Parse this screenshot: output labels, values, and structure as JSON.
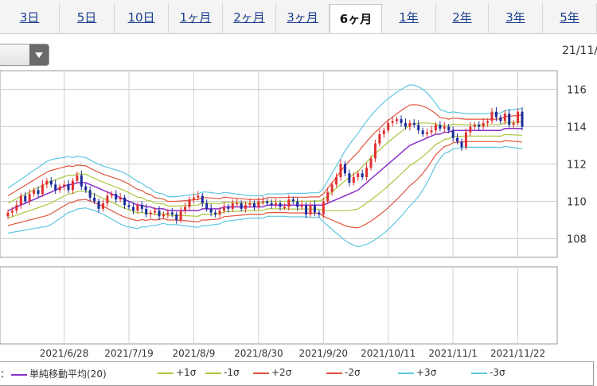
{
  "tabs": [
    {
      "label": "3日",
      "active": false
    },
    {
      "label": "5日",
      "active": false
    },
    {
      "label": "10日",
      "active": false
    },
    {
      "label": "1ヶ月",
      "active": false
    },
    {
      "label": "2ヶ月",
      "active": false
    },
    {
      "label": "3ヶ月",
      "active": false
    },
    {
      "label": "6ヶ月",
      "active": true
    },
    {
      "label": "1年",
      "active": false
    },
    {
      "label": "2年",
      "active": false
    },
    {
      "label": "3年",
      "active": false
    },
    {
      "label": "5年",
      "active": false
    }
  ],
  "header": {
    "date_label": "21/11/"
  },
  "legend": {
    "prefix": "：",
    "items": [
      {
        "label": "単純移動平均(20)",
        "color": "#8c2fc9"
      },
      {
        "label": "+1σ",
        "color": "#a8c83c"
      },
      {
        "label": "-1σ",
        "color": "#a8c83c"
      },
      {
        "label": "+2σ",
        "color": "#e0553a"
      },
      {
        "label": "-2σ",
        "color": "#e0553a"
      },
      {
        "label": "+3σ",
        "color": "#5fc8e0"
      },
      {
        "label": "-3σ",
        "color": "#5fc8e0"
      }
    ]
  },
  "colors": {
    "up": "#e03030",
    "down": "#1a2a9a",
    "grid": "#cfcfcf"
  },
  "chart_data": {
    "type": "candlestick",
    "title": "",
    "ylim": [
      107,
      117
    ],
    "yticks": [
      108,
      110,
      112,
      114,
      116
    ],
    "date_ticks": [
      "2021/6/28",
      "2021/7/19",
      "2021/8/9",
      "2021/8/30",
      "2021/9/20",
      "2021/10/11",
      "2021/11/1",
      "2021/11/22"
    ],
    "date_tick_index": [
      13,
      28,
      43,
      58,
      73,
      88,
      103,
      118
    ],
    "grid": true,
    "close": [
      109.4,
      109.5,
      109.8,
      110.3,
      110.0,
      110.4,
      110.6,
      110.4,
      110.9,
      111.1,
      110.9,
      110.6,
      110.8,
      110.9,
      110.6,
      111.1,
      111.4,
      110.8,
      110.6,
      110.2,
      110.0,
      109.6,
      109.9,
      110.3,
      110.4,
      110.1,
      110.2,
      109.8,
      109.7,
      109.5,
      109.8,
      109.6,
      109.3,
      109.4,
      109.5,
      109.2,
      109.3,
      109.4,
      109.3,
      109.0,
      109.5,
      109.7,
      110.1,
      110.2,
      110.3,
      109.9,
      109.6,
      109.4,
      109.3,
      109.5,
      109.7,
      109.6,
      109.9,
      109.9,
      109.6,
      109.8,
      109.9,
      109.7,
      110.0,
      110.0,
      109.9,
      109.8,
      109.9,
      109.7,
      109.7,
      110.1,
      110.0,
      109.7,
      109.8,
      109.3,
      109.8,
      109.4,
      109.3,
      110.0,
      110.5,
      110.9,
      111.3,
      112.0,
      111.5,
      111.0,
      111.3,
      111.5,
      111.3,
      111.8,
      112.3,
      113.1,
      113.6,
      113.8,
      114.2,
      114.3,
      114.4,
      114.2,
      114.0,
      114.2,
      114.1,
      113.8,
      113.6,
      113.7,
      113.8,
      114.1,
      113.9,
      114.0,
      113.8,
      113.4,
      113.2,
      112.9,
      113.7,
      114.0,
      114.1,
      114.0,
      114.2,
      114.3,
      114.8,
      114.5,
      114.3,
      114.7,
      114.1,
      114.2,
      114.8,
      114.0
    ],
    "sma20": [
      109.5,
      109.6,
      109.7,
      109.8,
      109.9,
      110.0,
      110.1,
      110.2,
      110.3,
      110.4,
      110.5,
      110.6,
      110.7,
      110.8,
      110.9,
      110.9,
      111.0,
      111.0,
      111.0,
      110.9,
      110.8,
      110.7,
      110.6,
      110.5,
      110.4,
      110.3,
      110.2,
      110.1,
      110.0,
      109.9,
      109.8,
      109.8,
      109.7,
      109.7,
      109.6,
      109.6,
      109.6,
      109.5,
      109.5,
      109.5,
      109.5,
      109.5,
      109.5,
      109.5,
      109.5,
      109.6,
      109.6,
      109.6,
      109.6,
      109.6,
      109.7,
      109.7,
      109.7,
      109.7,
      109.7,
      109.7,
      109.7,
      109.7,
      109.7,
      109.7,
      109.8,
      109.8,
      109.8,
      109.8,
      109.8,
      109.8,
      109.8,
      109.8,
      109.8,
      109.8,
      109.8,
      109.8,
      109.8,
      109.8,
      109.9,
      110.0,
      110.1,
      110.2,
      110.3,
      110.4,
      110.5,
      110.6,
      110.8,
      111.0,
      111.2,
      111.4,
      111.6,
      111.8,
      112.0,
      112.2,
      112.4,
      112.6,
      112.8,
      113.0,
      113.1,
      113.2,
      113.3,
      113.4,
      113.5,
      113.6,
      113.6,
      113.7,
      113.7,
      113.8,
      113.8,
      113.8,
      113.8,
      113.8,
      113.8,
      113.8,
      113.8,
      113.8,
      113.8,
      113.8,
      113.8,
      113.9,
      113.9,
      113.9,
      113.9,
      113.9
    ],
    "sigma": [
      0.4,
      0.42,
      0.44,
      0.46,
      0.48,
      0.5,
      0.52,
      0.54,
      0.56,
      0.58,
      0.58,
      0.56,
      0.54,
      0.52,
      0.5,
      0.48,
      0.47,
      0.46,
      0.45,
      0.44,
      0.43,
      0.43,
      0.43,
      0.44,
      0.45,
      0.46,
      0.47,
      0.47,
      0.46,
      0.44,
      0.42,
      0.39,
      0.36,
      0.33,
      0.3,
      0.28,
      0.26,
      0.25,
      0.25,
      0.25,
      0.26,
      0.27,
      0.28,
      0.29,
      0.3,
      0.3,
      0.3,
      0.29,
      0.28,
      0.27,
      0.26,
      0.25,
      0.24,
      0.23,
      0.22,
      0.21,
      0.2,
      0.2,
      0.2,
      0.2,
      0.2,
      0.2,
      0.2,
      0.2,
      0.2,
      0.21,
      0.21,
      0.21,
      0.21,
      0.21,
      0.22,
      0.22,
      0.22,
      0.3,
      0.4,
      0.5,
      0.6,
      0.7,
      0.8,
      0.88,
      0.95,
      1.01,
      1.06,
      1.1,
      1.13,
      1.15,
      1.16,
      1.17,
      1.17,
      1.16,
      1.15,
      1.13,
      1.11,
      1.08,
      1.04,
      0.98,
      0.9,
      0.8,
      0.68,
      0.55,
      0.44,
      0.38,
      0.35,
      0.33,
      0.32,
      0.31,
      0.3,
      0.3,
      0.3,
      0.3,
      0.3,
      0.3,
      0.3,
      0.3,
      0.31,
      0.32,
      0.33,
      0.34,
      0.35,
      0.36
    ]
  }
}
